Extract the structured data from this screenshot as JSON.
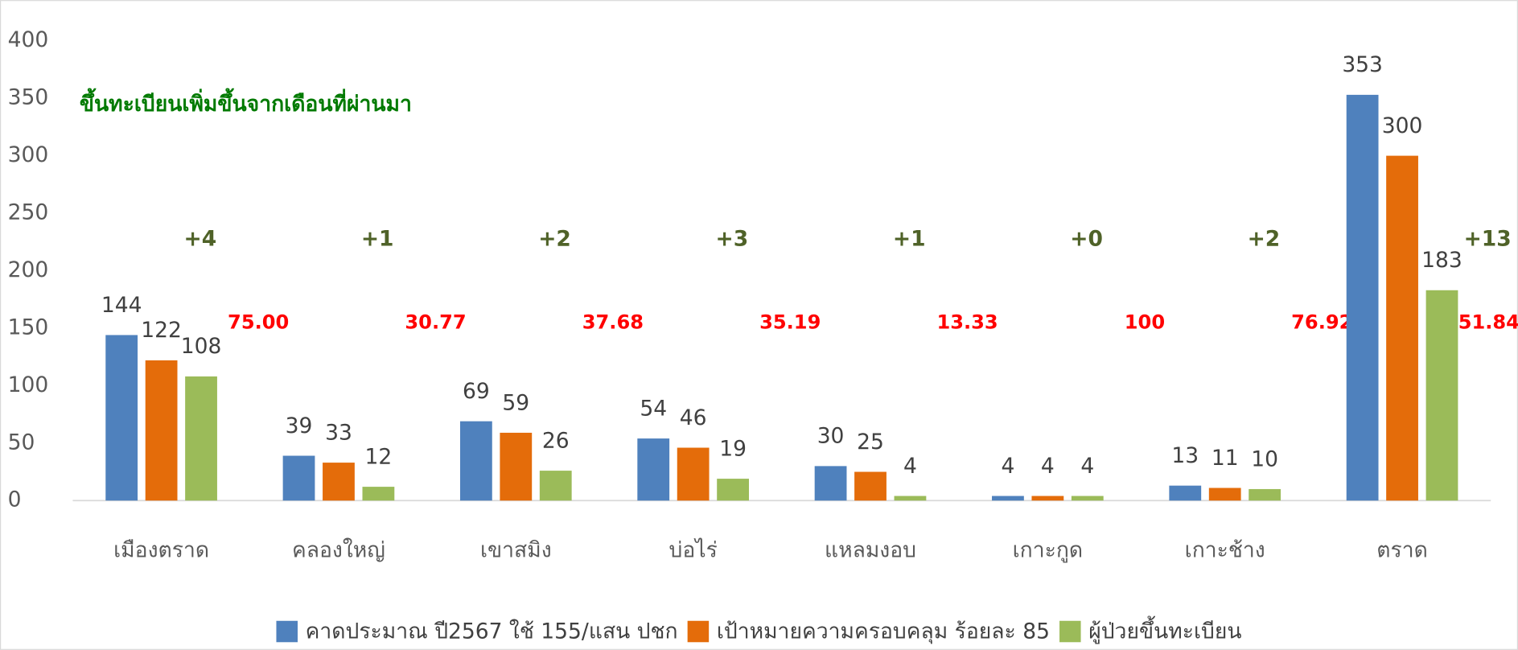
{
  "chart_data": {
    "type": "bar",
    "annotation": "ขึ้นทะเบียนเพิ่มขึ้นจากเดือนที่ผ่านมา",
    "categories": [
      "เมืองตราด",
      "คลองใหญ่",
      "เขาสมิง",
      "บ่อไร่",
      "แหลมงอบ",
      "เกาะกูด",
      "เกาะช้าง",
      "ตราด"
    ],
    "series": [
      {
        "name": "คาดประมาณ ปี2567 ใช้ 155/แสน ปชก",
        "color": "#4f81bd",
        "values": [
          144,
          39,
          69,
          54,
          30,
          4,
          13,
          353
        ]
      },
      {
        "name": "เป้าหมายความครอบคลุม ร้อยละ 85",
        "color": "#e46c0a",
        "values": [
          122,
          33,
          59,
          46,
          25,
          4,
          11,
          300
        ]
      },
      {
        "name": "ผู้ป่วยขึ้นทะเบียน",
        "color": "#9bbb59",
        "values": [
          108,
          12,
          26,
          19,
          4,
          4,
          10,
          183
        ]
      }
    ],
    "increase_labels": [
      "+4",
      "+1",
      "+2",
      "+3",
      "+1",
      "+0",
      "+2",
      "+13"
    ],
    "percent_labels": [
      "75.00",
      "30.77",
      "37.68",
      "35.19",
      "13.33",
      "100",
      "76.92",
      "51.84"
    ],
    "ylim": [
      0,
      400
    ],
    "yticks": [
      0,
      50,
      100,
      150,
      200,
      250,
      300,
      350,
      400
    ],
    "grid": false,
    "legend": "bottom"
  }
}
